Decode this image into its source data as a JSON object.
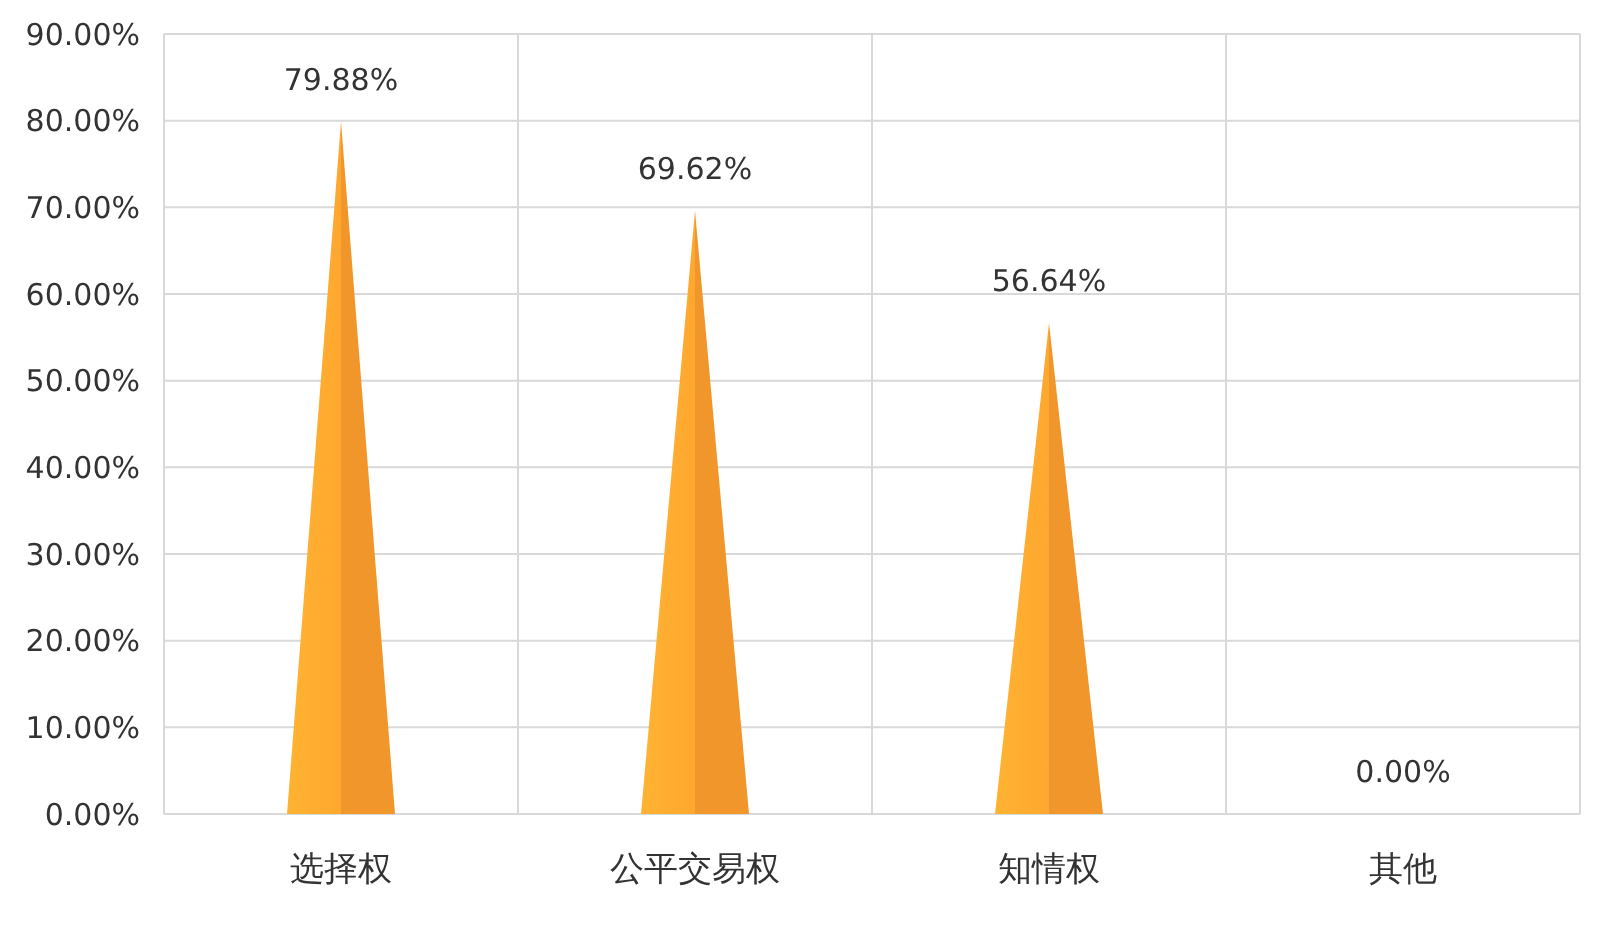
{
  "chart_data": {
    "type": "bar",
    "categories": [
      "选择权",
      "公平交易权",
      "知情权",
      "其他"
    ],
    "values": [
      79.88,
      69.62,
      56.64,
      0
    ],
    "value_labels": [
      "79.88%",
      "69.62%",
      "56.64%",
      "0.00%"
    ],
    "color": "#f0962a",
    "ylim": [
      0,
      90
    ],
    "yticks": [
      {
        "value": 0,
        "label": "0.00%"
      },
      {
        "value": 10,
        "label": "10.00%"
      },
      {
        "value": 20,
        "label": "20.00%"
      },
      {
        "value": 30,
        "label": "30.00%"
      },
      {
        "value": 40,
        "label": "40.00%"
      },
      {
        "value": 50,
        "label": "50.00%"
      },
      {
        "value": 60,
        "label": "60.00%"
      },
      {
        "value": 70,
        "label": "70.00%"
      },
      {
        "value": 80,
        "label": "80.00%"
      },
      {
        "value": 90,
        "label": "90.00%"
      }
    ],
    "grid": true
  }
}
